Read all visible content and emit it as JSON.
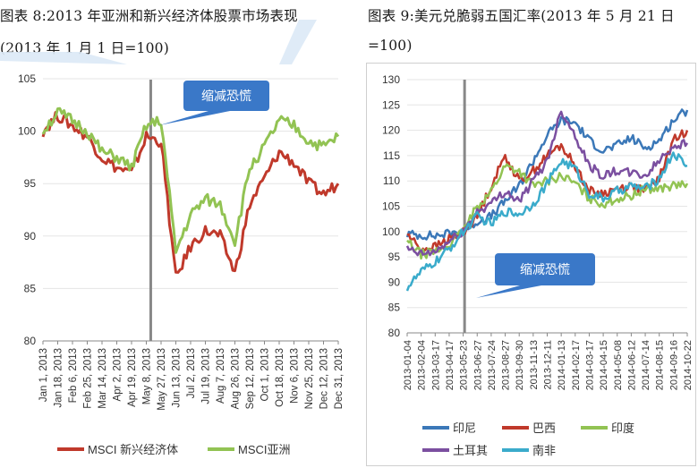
{
  "left_chart": {
    "title_line1": "图表 8:2013 年亚洲和新兴经济体股票市场表现",
    "title_line2": "(2013 年 1 月 1 日=100)",
    "annotation": "缩减恐慌"
  },
  "right_chart": {
    "title_line1": "图表 9:美元兑脆弱五国汇率(2013 年 5 月 21 日",
    "title_line2": "=100)",
    "annotation": "缩减恐慌"
  },
  "colors": {
    "red": "#c0392b",
    "green": "#92c353",
    "blue": "#3b78b8",
    "purple": "#7b4fa0",
    "cyan": "#3aabcb",
    "callout": "#3a78c8",
    "grid": "#e5e5e5"
  },
  "chart_data": [
    {
      "type": "line",
      "title": "2013 年亚洲和新兴经济体股票市场表现",
      "subtitle": "(2013 年 1 月 1 日=100)",
      "ylim": [
        80,
        105
      ],
      "yticks": [
        80,
        85,
        90,
        95,
        100,
        105
      ],
      "x_tick_labels": [
        "Jan 1, 2013",
        "Jan 18, 2013",
        "Feb 6, 2013",
        "Feb 25, 2013",
        "Mar 14, 2013",
        "Apr 2, 2013",
        "Apr 19, 2013",
        "May 8, 2013",
        "May 27, 2013",
        "Jun 13, 2013",
        "Jul 2, 2013",
        "Jul 19, 2013",
        "Aug 7, 2013",
        "Aug 26, 2013",
        "Sep 12, 2013",
        "Oct 1, 2013",
        "Oct 18, 2013",
        "Nov 6, 2013",
        "Nov 25, 2013",
        "Dec 12, 2013",
        "Dec 31, 2013"
      ],
      "vline_at_index": 7.3,
      "annotation": "缩减恐慌",
      "legend_position": "bottom",
      "series": [
        {
          "name": "MSCI 新兴经济体",
          "color": "red",
          "values": [
            100,
            101.5,
            100.5,
            99.5,
            97.5,
            96.5,
            96.0,
            99.5,
            99.0,
            86.0,
            89.0,
            90.5,
            90.0,
            86.5,
            93.0,
            95.5,
            98.0,
            97.0,
            95.0,
            94.0,
            95.0
          ]
        },
        {
          "name": "MSCI亚洲",
          "color": "green",
          "values": [
            100,
            101.8,
            101.0,
            100.0,
            98.0,
            97.5,
            96.5,
            100.5,
            101.0,
            88.5,
            92.0,
            93.5,
            93.0,
            89.5,
            96.5,
            98.5,
            101.0,
            100.5,
            99.0,
            98.5,
            99.5
          ]
        }
      ]
    },
    {
      "type": "line",
      "title": "美元兑脆弱五国汇率",
      "subtitle": "(2013 年 5 月 21 日=100)",
      "ylim": [
        80,
        130
      ],
      "yticks": [
        80,
        85,
        90,
        95,
        100,
        105,
        110,
        115,
        120,
        125,
        130
      ],
      "x_tick_labels": [
        "2013-01-04",
        "2013-02-04",
        "2013-03-17",
        "2013-04-17",
        "2013-05-23",
        "2013-06-27",
        "2013-07-24",
        "2013-08-27",
        "2013-09-30",
        "2013-11-13",
        "2013-12-11",
        "2014-01-13",
        "2014-02-17",
        "2014-03-17",
        "2014-04-15",
        "2014-05-08",
        "2014-06-12",
        "2014-07-14",
        "2014-08-15",
        "2014-09-16",
        "2014-10-22"
      ],
      "vline_at_index": 4.1,
      "annotation": "缩减恐慌",
      "legend_position": "bottom",
      "series": [
        {
          "name": "印尼",
          "color": "blue",
          "values": [
            99.5,
            99.3,
            99.2,
            99.6,
            100.0,
            102.0,
            103.0,
            106.0,
            109.0,
            114.0,
            119.0,
            122.0,
            121.5,
            118.0,
            116.0,
            117.0,
            118.5,
            116.5,
            118.0,
            122.0,
            124.0
          ]
        },
        {
          "name": "巴西",
          "color": "red",
          "values": [
            99.5,
            96.5,
            97.0,
            98.5,
            100.0,
            103.0,
            109.0,
            115.0,
            110.0,
            112.0,
            115.0,
            117.0,
            113.0,
            108.0,
            107.5,
            108.5,
            109.0,
            108.0,
            110.5,
            118.0,
            120.0
          ]
        },
        {
          "name": "印度",
          "color": "green",
          "values": [
            98.0,
            95.5,
            96.0,
            97.5,
            100.0,
            105.0,
            108.0,
            113.0,
            112.0,
            109.0,
            110.0,
            111.0,
            109.5,
            106.5,
            105.5,
            106.5,
            107.0,
            108.5,
            108.5,
            109.0,
            109.5
          ]
        },
        {
          "name": "土耳其",
          "color": "purple",
          "values": [
            96.5,
            95.5,
            96.0,
            98.0,
            100.0,
            104.0,
            105.5,
            108.0,
            106.0,
            110.0,
            114.0,
            124.0,
            119.0,
            113.0,
            111.0,
            112.0,
            111.5,
            111.0,
            114.0,
            117.0,
            117.5
          ]
        },
        {
          "name": "南非",
          "color": "cyan",
          "values": [
            89.0,
            92.0,
            94.0,
            96.5,
            100.0,
            103.0,
            101.5,
            104.0,
            103.5,
            105.5,
            109.5,
            114.0,
            112.5,
            107.5,
            106.5,
            108.0,
            109.0,
            108.5,
            110.5,
            115.5,
            113.0
          ]
        }
      ]
    }
  ]
}
